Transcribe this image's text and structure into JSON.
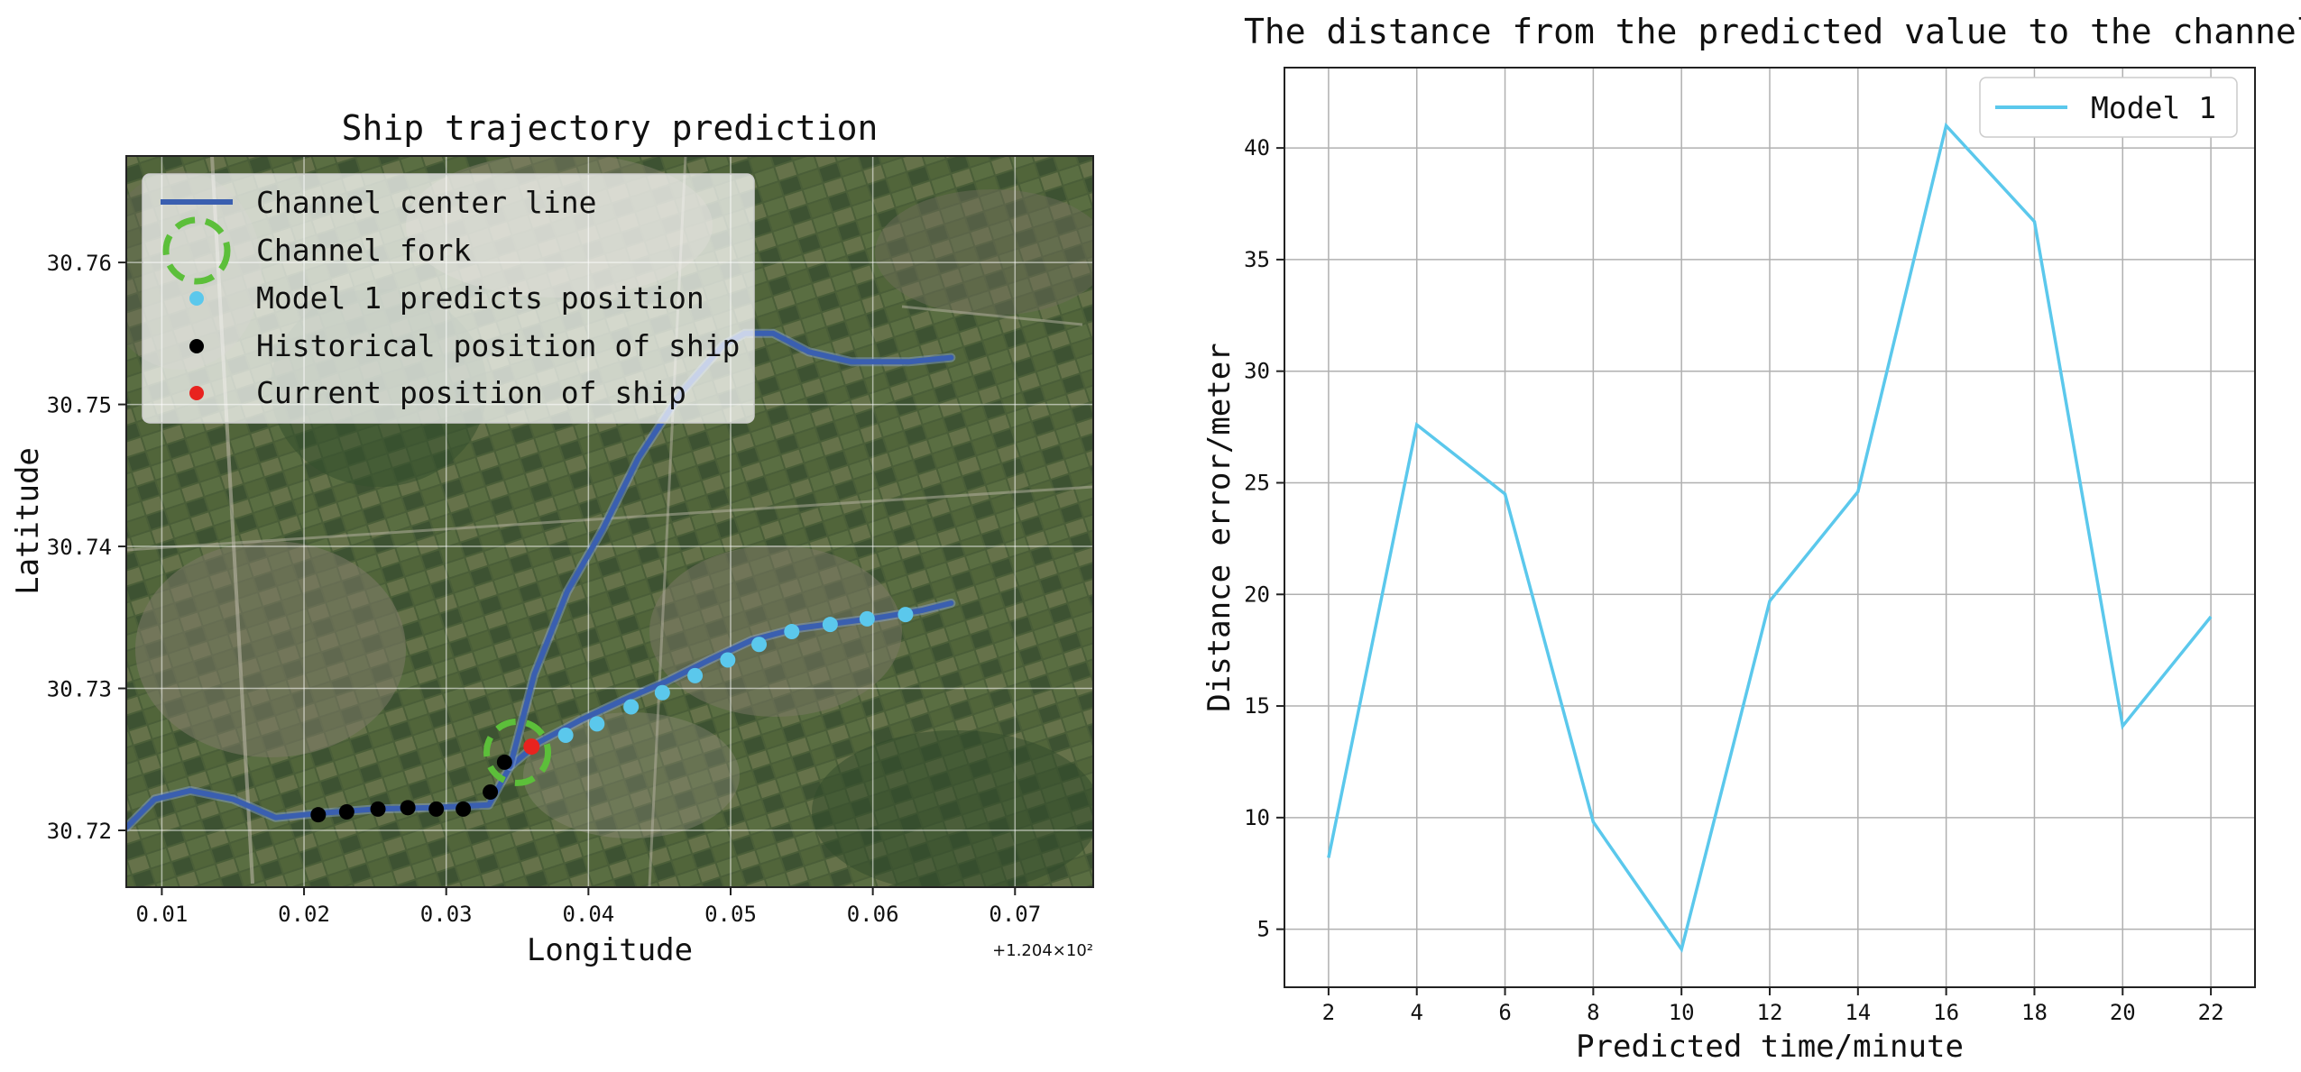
{
  "chart_data": [
    {
      "type": "scatter",
      "title": "Ship trajectory prediction",
      "xlabel": "Longitude",
      "ylabel": "Latitude",
      "x_offset_label": "+1.204×10²",
      "xlim": [
        0.0075,
        0.0755
      ],
      "ylim": [
        30.716,
        30.7675
      ],
      "x_ticks": [
        0.01,
        0.02,
        0.03,
        0.04,
        0.05,
        0.06,
        0.07
      ],
      "x_tick_labels": [
        "0.01",
        "0.02",
        "0.03",
        "0.04",
        "0.05",
        "0.06",
        "0.07"
      ],
      "y_ticks": [
        30.72,
        30.73,
        30.74,
        30.75,
        30.76
      ],
      "y_tick_labels": [
        "30.72",
        "30.73",
        "30.74",
        "30.75",
        "30.76"
      ],
      "grid": true,
      "background": "satellite imagery",
      "legend_position": "upper-left",
      "legend": [
        {
          "label": "Channel center line",
          "color": "#3a5fb0",
          "marker": "line"
        },
        {
          "label": "Channel fork",
          "color": "#5cbf3a",
          "marker": "dashed-circle"
        },
        {
          "label": "Model 1 predicts position",
          "color": "#5bc8ec",
          "marker": "dot"
        },
        {
          "label": "Historical position of ship",
          "color": "#000000",
          "marker": "dot"
        },
        {
          "label": "Current position of ship",
          "color": "#e8231f",
          "marker": "dot"
        }
      ],
      "channel_main": {
        "x": [
          0.0075,
          0.0095,
          0.012,
          0.015,
          0.018,
          0.021,
          0.025,
          0.029,
          0.033,
          0.0345,
          0.0365,
          0.0395,
          0.0425,
          0.0455,
          0.0485,
          0.0515,
          0.0545,
          0.0575,
          0.0605,
          0.0635,
          0.0655
        ],
        "y": [
          30.7202,
          30.7222,
          30.7228,
          30.7222,
          30.7209,
          30.7212,
          30.7215,
          30.7216,
          30.7218,
          30.7245,
          30.7262,
          30.7278,
          30.7292,
          30.7305,
          30.732,
          30.7334,
          30.7342,
          30.7346,
          30.735,
          30.7355,
          30.736
        ]
      },
      "channel_branch": {
        "x": [
          0.0345,
          0.0362,
          0.0385,
          0.041,
          0.0435,
          0.0465,
          0.0495,
          0.051,
          0.053,
          0.0555,
          0.0585,
          0.0625,
          0.0655
        ],
        "y": [
          30.7245,
          30.731,
          30.7368,
          30.7412,
          30.7462,
          30.7508,
          30.7542,
          30.755,
          30.755,
          30.7537,
          30.753,
          30.753,
          30.7533
        ]
      },
      "channel_fork": {
        "x": 0.035,
        "y": 30.7255
      },
      "historical_positions": {
        "x": [
          0.021,
          0.023,
          0.0252,
          0.0273,
          0.0293,
          0.0312,
          0.0331,
          0.0341
        ],
        "y": [
          30.7211,
          30.7213,
          30.7215,
          30.7216,
          30.7215,
          30.7215,
          30.7227,
          30.7248
        ]
      },
      "current_position": {
        "x": 0.036,
        "y": 30.7259
      },
      "predicted_positions": {
        "x": [
          0.0384,
          0.0406,
          0.043,
          0.0452,
          0.0475,
          0.0498,
          0.052,
          0.0543,
          0.057,
          0.0596,
          0.0623
        ],
        "y": [
          30.7267,
          30.7275,
          30.7287,
          30.7297,
          30.7309,
          30.732,
          30.7331,
          30.734,
          30.7345,
          30.7349,
          30.7352
        ]
      }
    },
    {
      "type": "line",
      "title": "The distance from the predicted value to the channel",
      "xlabel": "Predicted time/minute",
      "ylabel": "Distance error/meter",
      "xlim": [
        1,
        23
      ],
      "ylim": [
        2.4,
        43.6
      ],
      "x_ticks": [
        2,
        4,
        6,
        8,
        10,
        12,
        14,
        16,
        18,
        20,
        22
      ],
      "x_tick_labels": [
        "2",
        "4",
        "6",
        "8",
        "10",
        "12",
        "14",
        "16",
        "18",
        "20",
        "22"
      ],
      "y_ticks": [
        5,
        10,
        15,
        20,
        25,
        30,
        35,
        40
      ],
      "y_tick_labels": [
        "5",
        "10",
        "15",
        "20",
        "25",
        "30",
        "35",
        "40"
      ],
      "grid": true,
      "legend_position": "top-right",
      "series": [
        {
          "name": "Model 1",
          "color": "#5bc8ec",
          "x": [
            2,
            4,
            6,
            8,
            10,
            12,
            14,
            16,
            18,
            20,
            22
          ],
          "values": [
            8.2,
            27.6,
            24.5,
            9.8,
            4.1,
            19.7,
            24.6,
            41.0,
            36.7,
            14.1,
            19.0
          ]
        }
      ]
    }
  ]
}
